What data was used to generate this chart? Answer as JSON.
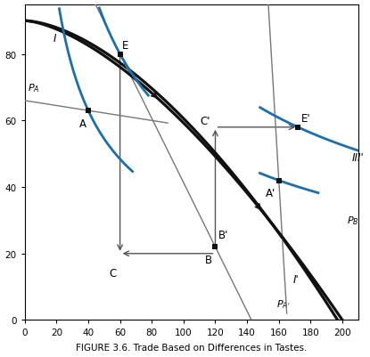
{
  "title": "FIGURE 3.6. Trade Based on Differences in Tastes.",
  "xlim": [
    0,
    210
  ],
  "ylim": [
    0,
    95
  ],
  "xticks": [
    0,
    20,
    40,
    60,
    80,
    100,
    120,
    140,
    160,
    180,
    200
  ],
  "yticks": [
    0,
    20,
    40,
    60,
    80
  ],
  "ppf_color": "#111111",
  "price_line_color": "#777777",
  "indiff_color": "#1a6faf",
  "point_color": "#111111",
  "point_A": [
    40,
    63
  ],
  "point_E": [
    60,
    80
  ],
  "point_B": [
    120,
    22
  ],
  "point_Aprime": [
    160,
    42
  ],
  "point_Eprime": [
    172,
    58
  ],
  "figsize": [
    4.15,
    4.02
  ],
  "dpi": 100
}
